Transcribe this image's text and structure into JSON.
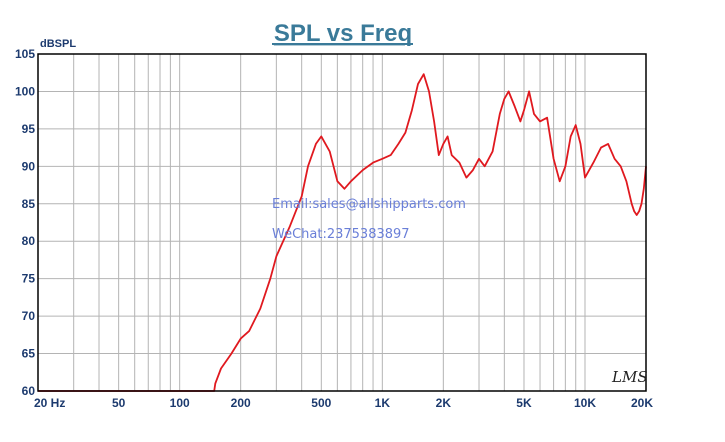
{
  "chart_data": {
    "type": "line",
    "title": "SPL vs Freq",
    "ylabel": "dBSPL",
    "xlabel": "",
    "x_scale": "log",
    "xlim": [
      20,
      20000
    ],
    "ylim": [
      60,
      105
    ],
    "grid": true,
    "y_ticks": [
      "105",
      "100",
      "95",
      "90",
      "85",
      "80",
      "75",
      "70",
      "65",
      "60"
    ],
    "x_ticks": [
      {
        "value": 20,
        "label": "20  Hz"
      },
      {
        "value": 50,
        "label": "50"
      },
      {
        "value": 100,
        "label": "100"
      },
      {
        "value": 200,
        "label": "200"
      },
      {
        "value": 500,
        "label": "500"
      },
      {
        "value": 1000,
        "label": "1K"
      },
      {
        "value": 2000,
        "label": "2K"
      },
      {
        "value": 5000,
        "label": "5K"
      },
      {
        "value": 10000,
        "label": "10K"
      },
      {
        "value": 20000,
        "label": "20K"
      }
    ],
    "series": [
      {
        "color": "#e0191f",
        "x": [
          20,
          100,
          148,
          150,
          160,
          180,
          200,
          220,
          250,
          280,
          300,
          350,
          400,
          430,
          470,
          500,
          550,
          600,
          650,
          700,
          800,
          900,
          1000,
          1100,
          1200,
          1300,
          1400,
          1500,
          1600,
          1700,
          1800,
          1900,
          2000,
          2100,
          2200,
          2400,
          2600,
          2800,
          3000,
          3200,
          3500,
          3800,
          4000,
          4200,
          4500,
          4800,
          5000,
          5300,
          5600,
          6000,
          6500,
          7000,
          7500,
          8000,
          8500,
          9000,
          9500,
          10000,
          11000,
          12000,
          13000,
          14000,
          15000,
          16000,
          17000,
          17500,
          18000,
          18500,
          19000,
          19500,
          20000
        ],
        "y": [
          60,
          60,
          60,
          61,
          63,
          65,
          67,
          68,
          71,
          75,
          78,
          82,
          86,
          90,
          93,
          94,
          92,
          88,
          87,
          88,
          89.5,
          90.5,
          91,
          91.5,
          93,
          94.5,
          97.5,
          101,
          102.3,
          100,
          96,
          91.5,
          93,
          94,
          91.5,
          90.5,
          88.5,
          89.5,
          91,
          90,
          92,
          97,
          99,
          100,
          98,
          96,
          97.5,
          100,
          97,
          96,
          96.5,
          91,
          88,
          90,
          94,
          95.5,
          93,
          88.5,
          90.5,
          92.5,
          93,
          91,
          90,
          88,
          85,
          84,
          83.5,
          84,
          85,
          87,
          90
        ]
      }
    ],
    "annotations": [
      "Email:sales@allshipparts.com",
      "WeChat:2375383897"
    ],
    "signature_text": "LMS",
    "colors": {
      "title": "#3a7a99",
      "axis_text": "#1c3a6e",
      "grid": "#b4b4b4",
      "curve": "#e0191f",
      "watermark": "#6a7fd8"
    }
  }
}
